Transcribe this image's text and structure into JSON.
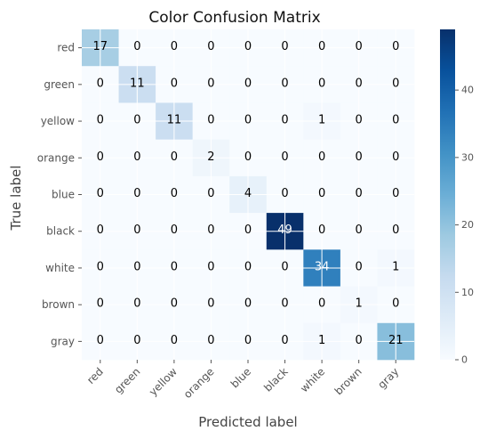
{
  "chart_data": {
    "type": "heatmap",
    "title": "Color Confusion Matrix",
    "xlabel": "Predicted label",
    "ylabel": "True label",
    "x_categories": [
      "red",
      "green",
      "yellow",
      "orange",
      "blue",
      "black",
      "white",
      "brown",
      "gray"
    ],
    "y_categories": [
      "red",
      "green",
      "yellow",
      "orange",
      "blue",
      "black",
      "white",
      "brown",
      "gray"
    ],
    "matrix": [
      [
        17,
        0,
        0,
        0,
        0,
        0,
        0,
        0,
        0
      ],
      [
        0,
        11,
        0,
        0,
        0,
        0,
        0,
        0,
        0
      ],
      [
        0,
        0,
        11,
        0,
        0,
        0,
        1,
        0,
        0
      ],
      [
        0,
        0,
        0,
        2,
        0,
        0,
        0,
        0,
        0
      ],
      [
        0,
        0,
        0,
        0,
        4,
        0,
        0,
        0,
        0
      ],
      [
        0,
        0,
        0,
        0,
        0,
        49,
        0,
        0,
        0
      ],
      [
        0,
        0,
        0,
        0,
        0,
        0,
        34,
        0,
        1
      ],
      [
        0,
        0,
        0,
        0,
        0,
        0,
        0,
        1,
        0
      ],
      [
        0,
        0,
        0,
        0,
        0,
        0,
        1,
        0,
        21
      ]
    ],
    "colormap": "Blues",
    "colorbar": {
      "range": [
        0,
        49
      ],
      "ticks": [
        0,
        10,
        20,
        30,
        40
      ]
    },
    "grid": true
  }
}
